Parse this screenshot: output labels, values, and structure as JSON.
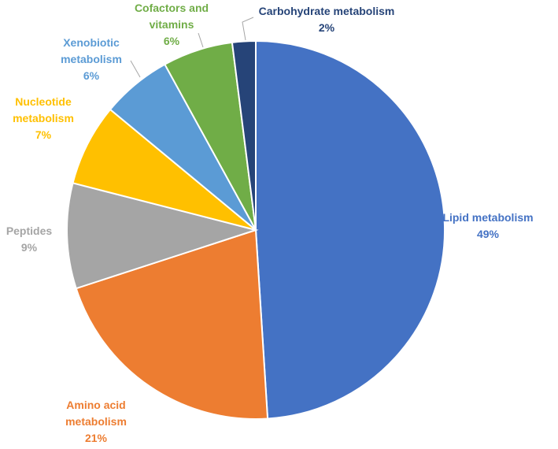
{
  "chart_data": {
    "type": "pie",
    "title": "",
    "start_angle_deg": 0,
    "direction": "clockwise",
    "slices": [
      {
        "name_lines": [
          "Lipid metabolism"
        ],
        "value": 49,
        "label": "49%",
        "color": "#4472C4"
      },
      {
        "name_lines": [
          "Amino acid",
          "metabolism"
        ],
        "value": 21,
        "label": "21%",
        "color": "#ED7D31"
      },
      {
        "name_lines": [
          "Peptides"
        ],
        "value": 9,
        "label": "9%",
        "color": "#A5A5A5"
      },
      {
        "name_lines": [
          "Nucleotide",
          "metabolism"
        ],
        "value": 7,
        "label": "7%",
        "color": "#FFC000"
      },
      {
        "name_lines": [
          "Xenobiotic",
          "metabolism"
        ],
        "value": 6,
        "label": "6%",
        "color": "#5B9BD5"
      },
      {
        "name_lines": [
          "Cofactors and",
          "vitamins"
        ],
        "value": 6,
        "label": "6%",
        "color": "#70AD47"
      },
      {
        "name_lines": [
          "Carbohydrate metabolism"
        ],
        "value": 2,
        "label": "2%",
        "color": "#264478"
      }
    ]
  }
}
